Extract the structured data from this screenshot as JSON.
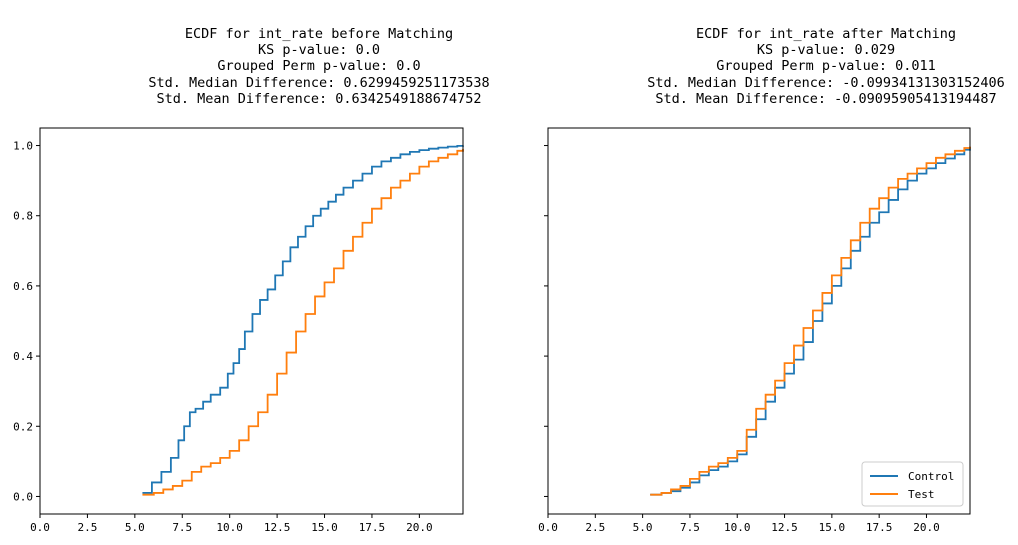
{
  "chart_data": [
    {
      "type": "line",
      "title_lines": [
        "ECDF for int_rate before Matching",
        "KS p-value: 0.0",
        "Grouped Perm p-value: 0.0",
        "Std. Median Difference: 0.6299459251173538",
        "Std. Mean Difference: 0.6342549188674752"
      ],
      "xlim": [
        0,
        22.3
      ],
      "ylim": [
        -0.05,
        1.05
      ],
      "xticks": [
        "0.0",
        "2.5",
        "5.0",
        "7.5",
        "10.0",
        "12.5",
        "15.0",
        "17.5",
        "20.0"
      ],
      "xtick_values": [
        0,
        2.5,
        5,
        7.5,
        10,
        12.5,
        15,
        17.5,
        20
      ],
      "yticks": [
        "0.0",
        "0.2",
        "0.4",
        "0.6",
        "0.8",
        "1.0"
      ],
      "ytick_values": [
        0,
        0.2,
        0.4,
        0.6,
        0.8,
        1.0
      ],
      "grid": false,
      "series": [
        {
          "name": "Control",
          "color": "#1f77b4",
          "x": [
            5.4,
            5.9,
            6.4,
            6.9,
            7.3,
            7.6,
            7.9,
            8.2,
            8.6,
            9.0,
            9.5,
            9.9,
            10.2,
            10.5,
            10.8,
            11.2,
            11.6,
            12.0,
            12.4,
            12.8,
            13.2,
            13.6,
            14.0,
            14.4,
            14.8,
            15.2,
            15.6,
            16.0,
            16.5,
            17.0,
            17.5,
            18.0,
            18.5,
            19.0,
            19.5,
            20.0,
            20.5,
            21.0,
            21.5,
            22.0,
            22.3
          ],
          "y": [
            0.01,
            0.04,
            0.07,
            0.11,
            0.16,
            0.2,
            0.24,
            0.25,
            0.27,
            0.29,
            0.31,
            0.35,
            0.38,
            0.42,
            0.47,
            0.52,
            0.56,
            0.59,
            0.63,
            0.67,
            0.71,
            0.74,
            0.77,
            0.8,
            0.82,
            0.84,
            0.86,
            0.88,
            0.9,
            0.92,
            0.94,
            0.955,
            0.965,
            0.975,
            0.982,
            0.987,
            0.991,
            0.994,
            0.997,
            0.999,
            1.0
          ]
        },
        {
          "name": "Test",
          "color": "#ff7f0e",
          "x": [
            5.4,
            6.0,
            6.5,
            7.0,
            7.5,
            8.0,
            8.5,
            9.0,
            9.5,
            10.0,
            10.5,
            11.0,
            11.5,
            12.0,
            12.5,
            13.0,
            13.5,
            14.0,
            14.5,
            15.0,
            15.5,
            16.0,
            16.5,
            17.0,
            17.5,
            18.0,
            18.5,
            19.0,
            19.5,
            20.0,
            20.5,
            21.0,
            21.5,
            22.0,
            22.3
          ],
          "y": [
            0.005,
            0.01,
            0.02,
            0.03,
            0.045,
            0.07,
            0.085,
            0.095,
            0.11,
            0.13,
            0.16,
            0.2,
            0.24,
            0.29,
            0.35,
            0.41,
            0.47,
            0.52,
            0.57,
            0.61,
            0.65,
            0.7,
            0.74,
            0.78,
            0.82,
            0.85,
            0.88,
            0.9,
            0.92,
            0.94,
            0.955,
            0.965,
            0.975,
            0.985,
            0.99
          ]
        }
      ]
    },
    {
      "type": "line",
      "title_lines": [
        "ECDF for int_rate after Matching",
        "KS p-value: 0.029",
        "Grouped Perm p-value: 0.011",
        "Std. Median Difference: -0.09934131303152406",
        "Std. Mean Difference: -0.09095905413194487"
      ],
      "xlim": [
        0,
        22.3
      ],
      "ylim": [
        -0.05,
        1.05
      ],
      "xticks": [
        "0.0",
        "2.5",
        "5.0",
        "7.5",
        "10.0",
        "12.5",
        "15.0",
        "17.5",
        "20.0"
      ],
      "xtick_values": [
        0,
        2.5,
        5,
        7.5,
        10,
        12.5,
        15,
        17.5,
        20
      ],
      "grid": false,
      "legend": {
        "position": "lower-right",
        "entries": [
          "Control",
          "Test"
        ]
      },
      "series": [
        {
          "name": "Control",
          "color": "#1f77b4",
          "x": [
            5.4,
            6.0,
            6.5,
            7.0,
            7.5,
            8.0,
            8.5,
            9.0,
            9.5,
            10.0,
            10.5,
            11.0,
            11.5,
            12.0,
            12.5,
            13.0,
            13.5,
            14.0,
            14.5,
            15.0,
            15.5,
            16.0,
            16.5,
            17.0,
            17.5,
            18.0,
            18.5,
            19.0,
            19.5,
            20.0,
            20.5,
            21.0,
            21.5,
            22.0,
            22.3
          ],
          "y": [
            0.005,
            0.01,
            0.015,
            0.025,
            0.04,
            0.06,
            0.075,
            0.085,
            0.1,
            0.12,
            0.17,
            0.22,
            0.27,
            0.31,
            0.35,
            0.39,
            0.44,
            0.5,
            0.55,
            0.6,
            0.65,
            0.7,
            0.74,
            0.78,
            0.81,
            0.845,
            0.875,
            0.9,
            0.92,
            0.935,
            0.95,
            0.963,
            0.975,
            0.988,
            0.995
          ]
        },
        {
          "name": "Test",
          "color": "#ff7f0e",
          "x": [
            5.4,
            6.0,
            6.5,
            7.0,
            7.5,
            8.0,
            8.5,
            9.0,
            9.5,
            10.0,
            10.5,
            11.0,
            11.5,
            12.0,
            12.5,
            13.0,
            13.5,
            14.0,
            14.5,
            15.0,
            15.5,
            16.0,
            16.5,
            17.0,
            17.5,
            18.0,
            18.5,
            19.0,
            19.5,
            20.0,
            20.5,
            21.0,
            21.5,
            22.0,
            22.3
          ],
          "y": [
            0.005,
            0.01,
            0.02,
            0.03,
            0.05,
            0.07,
            0.085,
            0.095,
            0.11,
            0.13,
            0.19,
            0.25,
            0.29,
            0.33,
            0.38,
            0.43,
            0.48,
            0.53,
            0.58,
            0.63,
            0.68,
            0.73,
            0.78,
            0.82,
            0.85,
            0.88,
            0.905,
            0.92,
            0.935,
            0.95,
            0.965,
            0.975,
            0.985,
            0.993,
            0.997
          ]
        }
      ]
    }
  ]
}
